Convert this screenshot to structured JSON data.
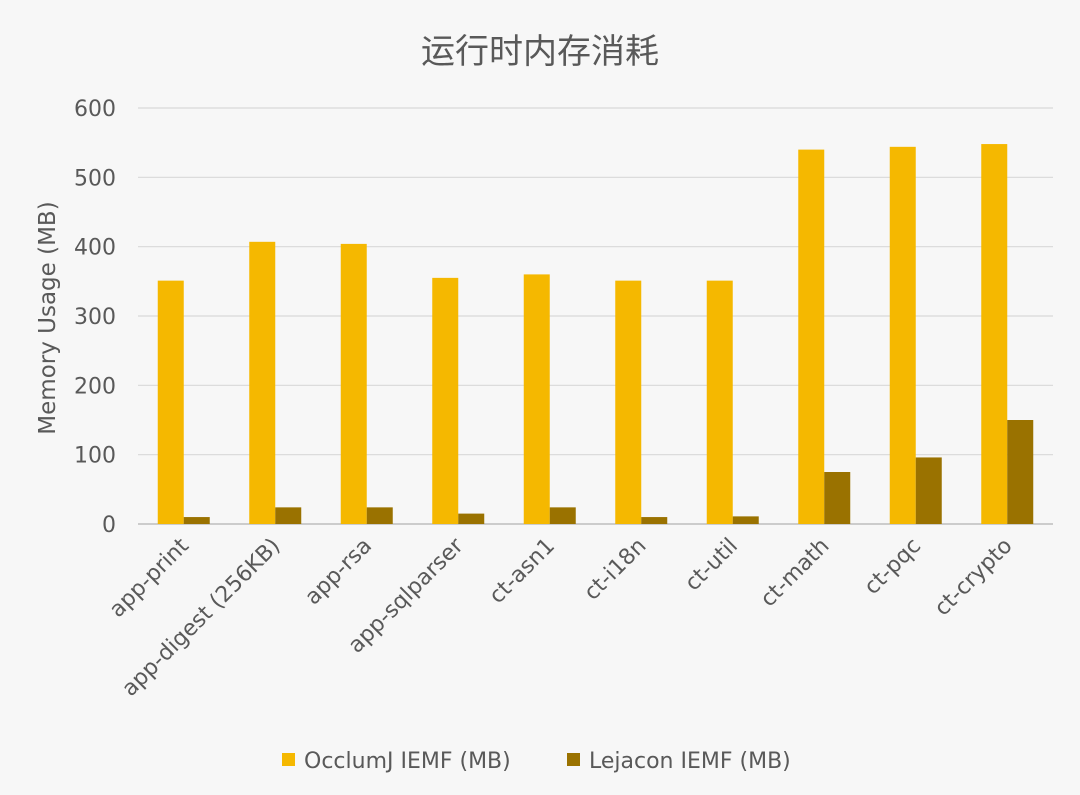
{
  "chart_data": {
    "type": "bar",
    "title": "运行时内存消耗",
    "xlabel": "",
    "ylabel": "Memory Usage (MB)",
    "ylim": [
      0,
      600
    ],
    "yticks": [
      0,
      100,
      200,
      300,
      400,
      500,
      600
    ],
    "grid": true,
    "legend_position": "bottom",
    "categories": [
      "app-print",
      "app-digest (256KB)",
      "app-rsa",
      "app-sqlparser",
      "ct-asn1",
      "ct-i18n",
      "ct-util",
      "ct-math",
      "ct-pqc",
      "ct-crypto"
    ],
    "series": [
      {
        "name": "OcclumJ IEMF (MB)",
        "color": "#f5b800",
        "values": [
          351,
          407,
          404,
          355,
          360,
          351,
          351,
          540,
          544,
          548
        ]
      },
      {
        "name": "Lejacon IEMF (MB)",
        "color": "#9a7200",
        "values": [
          10,
          24,
          24,
          15,
          24,
          10,
          11,
          75,
          96,
          150
        ]
      }
    ]
  }
}
